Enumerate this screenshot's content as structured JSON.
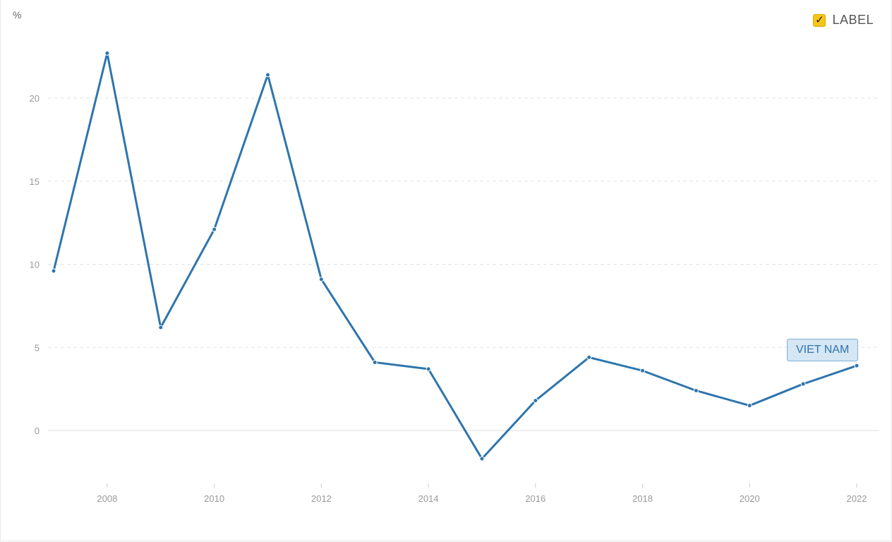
{
  "legend": {
    "label": "LABEL",
    "checked": true,
    "check_color": "#f5c518"
  },
  "chart_data": {
    "type": "line",
    "ylabel": "%",
    "x": [
      2007,
      2008,
      2009,
      2010,
      2011,
      2012,
      2013,
      2014,
      2015,
      2016,
      2017,
      2018,
      2019,
      2020,
      2021,
      2022
    ],
    "x_ticks": [
      2008,
      2010,
      2012,
      2014,
      2016,
      2018,
      2020,
      2022
    ],
    "y_ticks": [
      0,
      5,
      10,
      15,
      20
    ],
    "xlim": [
      2007,
      2022
    ],
    "ylim": [
      -2.5,
      25
    ],
    "grid": true,
    "series": [
      {
        "name": "VIET NAM",
        "color": "#2e75ac",
        "values": [
          9.6,
          22.7,
          6.2,
          12.1,
          21.4,
          9.1,
          4.1,
          3.7,
          -1.7,
          1.8,
          4.4,
          3.6,
          2.4,
          1.5,
          2.8,
          3.9
        ]
      }
    ]
  }
}
